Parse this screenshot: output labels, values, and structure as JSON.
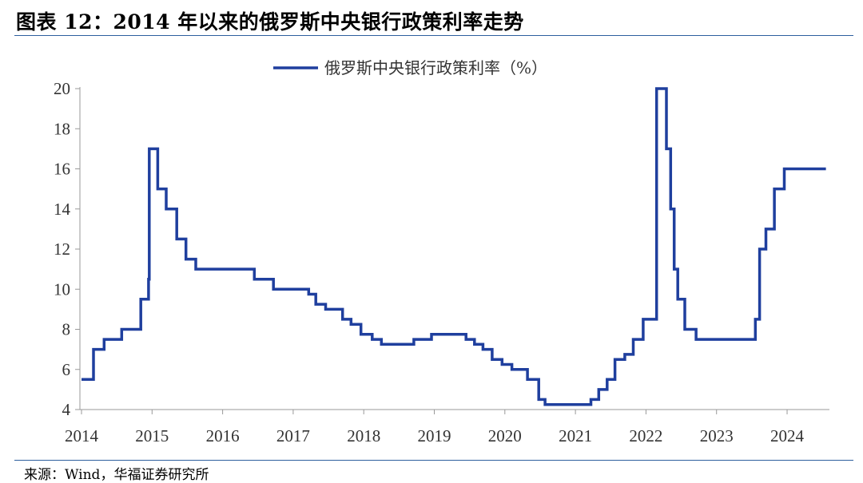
{
  "title": "图表 12：2014 年以来的俄罗斯中央银行政策利率走势",
  "source": "来源：Wind，华福证券研究所",
  "chart_data": {
    "type": "line",
    "title": "",
    "xlabel": "",
    "ylabel": "",
    "ylim": [
      4,
      20
    ],
    "yticks": [
      "4",
      "6",
      "8",
      "10",
      "12",
      "14",
      "16",
      "18",
      "20"
    ],
    "xlim": [
      2014.0,
      2024.6
    ],
    "xticks": [
      "2014",
      "2015",
      "2016",
      "2017",
      "2018",
      "2019",
      "2020",
      "2021",
      "2022",
      "2023",
      "2024"
    ],
    "grid": false,
    "legend_position": "top-center",
    "color": "#1f3f9e",
    "series": [
      {
        "name": "俄罗斯中央银行政策利率（%）",
        "x": [
          2014.0,
          2014.17,
          2014.17,
          2014.32,
          2014.32,
          2014.57,
          2014.57,
          2014.84,
          2014.84,
          2014.95,
          2014.95,
          2014.96,
          2014.96,
          2015.08,
          2015.08,
          2015.2,
          2015.2,
          2015.35,
          2015.35,
          2015.48,
          2015.48,
          2015.62,
          2015.62,
          2016.45,
          2016.45,
          2016.72,
          2016.72,
          2017.22,
          2017.22,
          2017.32,
          2017.32,
          2017.46,
          2017.46,
          2017.7,
          2017.7,
          2017.82,
          2017.82,
          2017.96,
          2017.96,
          2018.12,
          2018.12,
          2018.25,
          2018.25,
          2018.71,
          2018.71,
          2018.96,
          2018.96,
          2019.45,
          2019.45,
          2019.57,
          2019.57,
          2019.69,
          2019.69,
          2019.82,
          2019.82,
          2019.96,
          2019.96,
          2020.1,
          2020.1,
          2020.32,
          2020.32,
          2020.48,
          2020.48,
          2020.57,
          2020.57,
          2021.22,
          2021.22,
          2021.33,
          2021.33,
          2021.45,
          2021.45,
          2021.56,
          2021.56,
          2021.7,
          2021.7,
          2021.82,
          2021.82,
          2021.96,
          2021.96,
          2022.15,
          2022.15,
          2022.15,
          2022.15,
          2022.29,
          2022.29,
          2022.35,
          2022.35,
          2022.4,
          2022.4,
          2022.45,
          2022.45,
          2022.55,
          2022.55,
          2022.71,
          2022.71,
          2023.55,
          2023.55,
          2023.61,
          2023.61,
          2023.7,
          2023.7,
          2023.82,
          2023.82,
          2023.96,
          2023.96,
          2024.55
        ],
        "values": [
          5.5,
          5.5,
          7.0,
          7.0,
          7.5,
          7.5,
          8.0,
          8.0,
          9.5,
          9.5,
          10.5,
          10.5,
          17.0,
          17.0,
          15.0,
          15.0,
          14.0,
          14.0,
          12.5,
          12.5,
          11.5,
          11.5,
          11.0,
          11.0,
          10.5,
          10.5,
          10.0,
          10.0,
          9.75,
          9.75,
          9.25,
          9.25,
          9.0,
          9.0,
          8.5,
          8.5,
          8.25,
          8.25,
          7.75,
          7.75,
          7.5,
          7.5,
          7.25,
          7.25,
          7.5,
          7.5,
          7.75,
          7.75,
          7.5,
          7.5,
          7.25,
          7.25,
          7.0,
          7.0,
          6.5,
          6.5,
          6.25,
          6.25,
          6.0,
          6.0,
          5.5,
          5.5,
          4.5,
          4.5,
          4.25,
          4.25,
          4.5,
          4.5,
          5.0,
          5.0,
          5.5,
          5.5,
          6.5,
          6.5,
          6.75,
          6.75,
          7.5,
          7.5,
          8.5,
          8.5,
          9.5,
          9.5,
          20.0,
          20.0,
          17.0,
          17.0,
          14.0,
          14.0,
          11.0,
          11.0,
          9.5,
          9.5,
          8.0,
          8.0,
          7.5,
          7.5,
          8.5,
          8.5,
          12.0,
          12.0,
          13.0,
          13.0,
          15.0,
          15.0,
          16.0,
          16.0
        ]
      }
    ]
  }
}
